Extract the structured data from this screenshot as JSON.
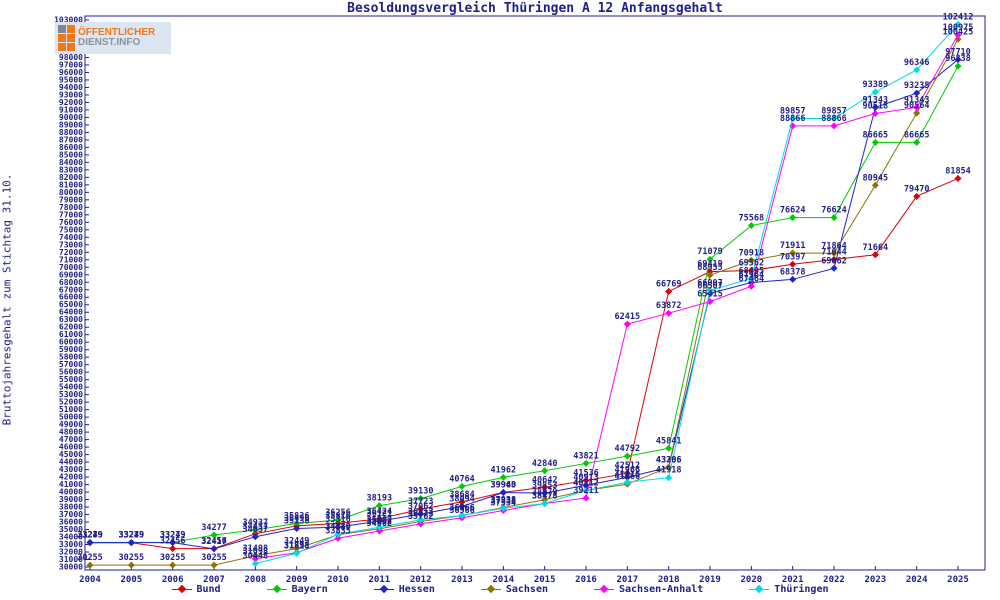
{
  "logo": {
    "line1": "ÖFFENTLICHER",
    "line2": "DIENST.INFO"
  },
  "chart_data": {
    "type": "line",
    "title": "Besoldungsvergleich Thüringen A 12 Anfangsgehalt",
    "xlabel": "",
    "ylabel": "Bruttojahresgehalt zum Stichtag 31.10.",
    "x": [
      2004,
      2005,
      2006,
      2007,
      2008,
      2009,
      2010,
      2011,
      2012,
      2013,
      2014,
      2015,
      2016,
      2017,
      2018,
      2019,
      2020,
      2021,
      2022,
      2023,
      2024,
      2025
    ],
    "ylim": [
      30000,
      103000
    ],
    "ytick_step": 1000,
    "grid": false,
    "legend_position": "bottom",
    "point_labels": true,
    "series": [
      {
        "name": "Bund",
        "color": "#dd0000",
        "values": [
          33239,
          33239,
          32456,
          32456,
          34437,
          35496,
          35816,
          36424,
          37723,
          38684,
          39963,
          40642,
          41536,
          42512,
          66769,
          69419,
          69562,
          70397,
          71044,
          71664,
          79470,
          81854
        ]
      },
      {
        "name": "Bayern",
        "color": "#00cc00",
        "values": [
          33279,
          33279,
          33279,
          34277,
          34937,
          35826,
          36256,
          38193,
          39130,
          40764,
          41962,
          42840,
          43821,
          44792,
          45841,
          71079,
          75568,
          76624,
          76624,
          86665,
          86665,
          96838
        ]
      },
      {
        "name": "Hessen",
        "color": "#2222cc",
        "values": [
          33249,
          33249,
          33249,
          32417,
          34037,
          35136,
          35316,
          36121,
          37062,
          38094,
          39940,
          39853,
          40913,
          41966,
          43306,
          66507,
          67964,
          68378,
          69862,
          91343,
          93235,
          97710
        ]
      },
      {
        "name": "Sachsen",
        "color": "#8b7500",
        "values": [
          30255,
          30255,
          30255,
          30255,
          31498,
          32449,
          34310,
          35102,
          36073,
          36866,
          37938,
          38979,
          40212,
          41066,
          43286,
          68955,
          70918,
          71911,
          71864,
          80945,
          90564,
          100425
        ]
      },
      {
        "name": "Sachsen-Anhalt",
        "color": "#ff00ff",
        "values": [
          null,
          null,
          null,
          null,
          31098,
          31898,
          33835,
          34802,
          35762,
          36566,
          37534,
          38478,
          39211,
          62415,
          63872,
          65415,
          67464,
          88866,
          88866,
          90518,
          91343,
          100975
        ]
      },
      {
        "name": "Thüringen",
        "color": "#00dde0",
        "values": [
          null,
          null,
          null,
          null,
          30448,
          31818,
          34380,
          35302,
          36313,
          36866,
          37838,
          38478,
          40212,
          41316,
          41918,
          66907,
          68495,
          89857,
          89857,
          93389,
          96346,
          102412
        ]
      }
    ]
  },
  "colors": {
    "text": "#202088",
    "border": "#202088",
    "background": "#ffffff"
  }
}
